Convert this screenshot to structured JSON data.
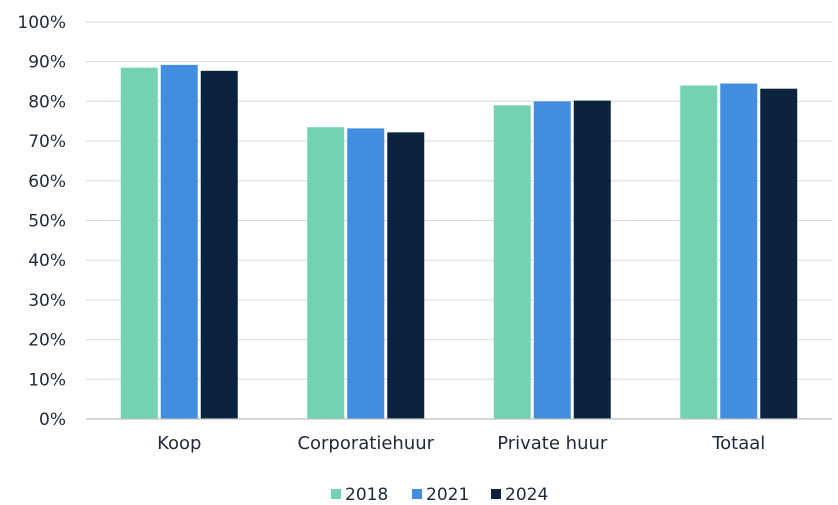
{
  "chart_data": {
    "type": "bar",
    "title": "",
    "xlabel": "",
    "ylabel": "",
    "categories": [
      "Koop",
      "Corporatiehuur",
      "Private huur",
      "Totaal"
    ],
    "series": [
      {
        "name": "2018",
        "color": "#74d1b4",
        "values": [
          88.5,
          73.5,
          79.0,
          84.0
        ]
      },
      {
        "name": "2021",
        "color": "#418ddf",
        "values": [
          89.2,
          73.2,
          80.0,
          84.5
        ]
      },
      {
        "name": "2024",
        "color": "#0c2340",
        "values": [
          87.7,
          72.2,
          80.2,
          83.2
        ]
      }
    ],
    "ylim": [
      0,
      100
    ],
    "yticks": [
      "0%",
      "10%",
      "20%",
      "30%",
      "40%",
      "50%",
      "60%",
      "70%",
      "80%",
      "90%",
      "100%"
    ],
    "grid": true,
    "legend_position": "bottom"
  }
}
